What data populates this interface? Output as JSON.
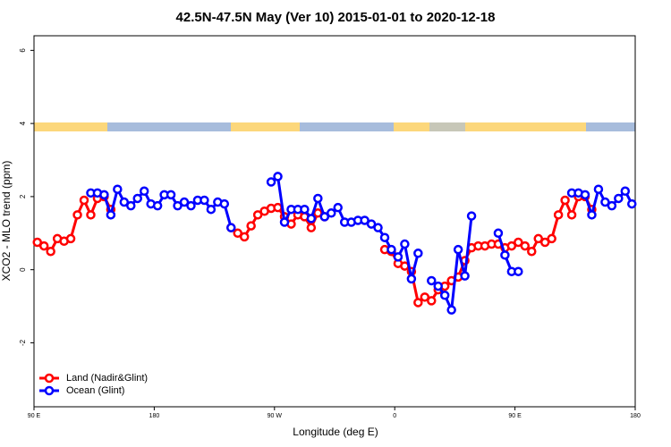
{
  "chart_data": {
    "type": "line",
    "title": "42.5N-47.5N May (Ver 10)   2015-01-01 to 2020-12-18",
    "x_label": "Longitude (deg E)",
    "y_label": "XCO2 - MLO trend (ppm)",
    "x": [
      92.5,
      97.5,
      102.5,
      107.5,
      112.5,
      117.5,
      122.5,
      127.5,
      132.5,
      137.5,
      142.5,
      147.5,
      152.5,
      157.5,
      162.5,
      167.5,
      172.5,
      177.5,
      182.5,
      187.5,
      192.5,
      197.5,
      202.5,
      207.5,
      212.5,
      217.5,
      222.5,
      227.5,
      232.5,
      237.5,
      242.5,
      247.5,
      252.5,
      257.5,
      262.5,
      267.5,
      272.5,
      277.5,
      282.5,
      287.5,
      292.5,
      297.5,
      302.5,
      307.5,
      312.5,
      317.5,
      322.5,
      327.5,
      332.5,
      337.5,
      342.5,
      347.5,
      352.5,
      357.5,
      362.5,
      367.5,
      372.5,
      377.5,
      382.5,
      387.5,
      392.5,
      397.5,
      402.5,
      407.5,
      412.5,
      417.5,
      422.5,
      427.5,
      432.5,
      437.5,
      442.5,
      447.5,
      452.5,
      457.5,
      462.5,
      467.5,
      472.5,
      477.5,
      482.5,
      487.5,
      492.5,
      497.5,
      502.5,
      507.5,
      512.5,
      517.5,
      522.5,
      527.5,
      532.5,
      537.5
    ],
    "series": [
      {
        "name": "Land (Nadir&Glint)",
        "color": "#ff0000",
        "values": [
          0.75,
          0.65,
          0.5,
          0.85,
          0.78,
          0.85,
          1.5,
          1.9,
          1.5,
          1.95,
          2.0,
          1.65,
          null,
          null,
          null,
          null,
          null,
          null,
          null,
          null,
          null,
          null,
          null,
          null,
          null,
          null,
          null,
          null,
          null,
          1.15,
          1.0,
          0.9,
          1.2,
          1.5,
          1.6,
          1.68,
          1.7,
          1.45,
          1.25,
          1.5,
          1.45,
          1.15,
          1.55,
          1.45,
          null,
          null,
          null,
          null,
          null,
          null,
          null,
          null,
          0.55,
          0.5,
          0.17,
          0.1,
          -0.05,
          -0.9,
          -0.75,
          -0.85,
          -0.55,
          -0.45,
          -0.3,
          -0.2,
          0.25,
          0.6,
          0.65,
          0.65,
          0.7,
          0.7,
          0.6,
          0.65,
          0.75,
          0.65,
          0.5,
          0.85,
          0.75,
          0.85,
          1.5,
          1.9,
          1.5,
          2.0,
          2.0,
          1.65,
          null,
          null,
          null,
          null,
          null,
          null
        ]
      },
      {
        "name": "Ocean (Glint)",
        "color": "#0000ff",
        "values": [
          null,
          null,
          null,
          null,
          null,
          null,
          null,
          null,
          2.1,
          2.1,
          2.05,
          1.5,
          2.2,
          1.85,
          1.75,
          1.95,
          2.15,
          1.8,
          1.75,
          2.05,
          2.05,
          1.75,
          1.85,
          1.75,
          1.9,
          1.9,
          1.65,
          1.85,
          1.8,
          1.15,
          null,
          null,
          null,
          null,
          null,
          2.4,
          2.55,
          1.3,
          1.65,
          1.65,
          1.65,
          1.4,
          1.95,
          1.45,
          1.55,
          1.7,
          1.3,
          1.3,
          1.35,
          1.35,
          1.25,
          1.15,
          0.88,
          0.55,
          0.35,
          0.7,
          -0.25,
          0.45,
          null,
          -0.3,
          -0.45,
          -0.7,
          -1.1,
          0.55,
          -0.17,
          1.47,
          null,
          null,
          null,
          1.0,
          0.4,
          -0.05,
          -0.05,
          null,
          null,
          null,
          null,
          null,
          null,
          null,
          2.1,
          2.1,
          2.05,
          1.5,
          2.2,
          1.85,
          1.75,
          1.95,
          2.15,
          1.8
        ]
      }
    ],
    "xlim": [
      90,
      540
    ],
    "xticks": [
      {
        "value": 90,
        "label": "90 E"
      },
      {
        "value": 180,
        "label": "180"
      },
      {
        "value": 270,
        "label": "90 W"
      },
      {
        "value": 360,
        "label": "0"
      },
      {
        "value": 450,
        "label": "90 E"
      },
      {
        "value": 540,
        "label": "180"
      }
    ],
    "ylim": [
      -3.75,
      6.4
    ],
    "yticks": [
      -2,
      0,
      2,
      4,
      6
    ],
    "legend": "bottom-left"
  }
}
